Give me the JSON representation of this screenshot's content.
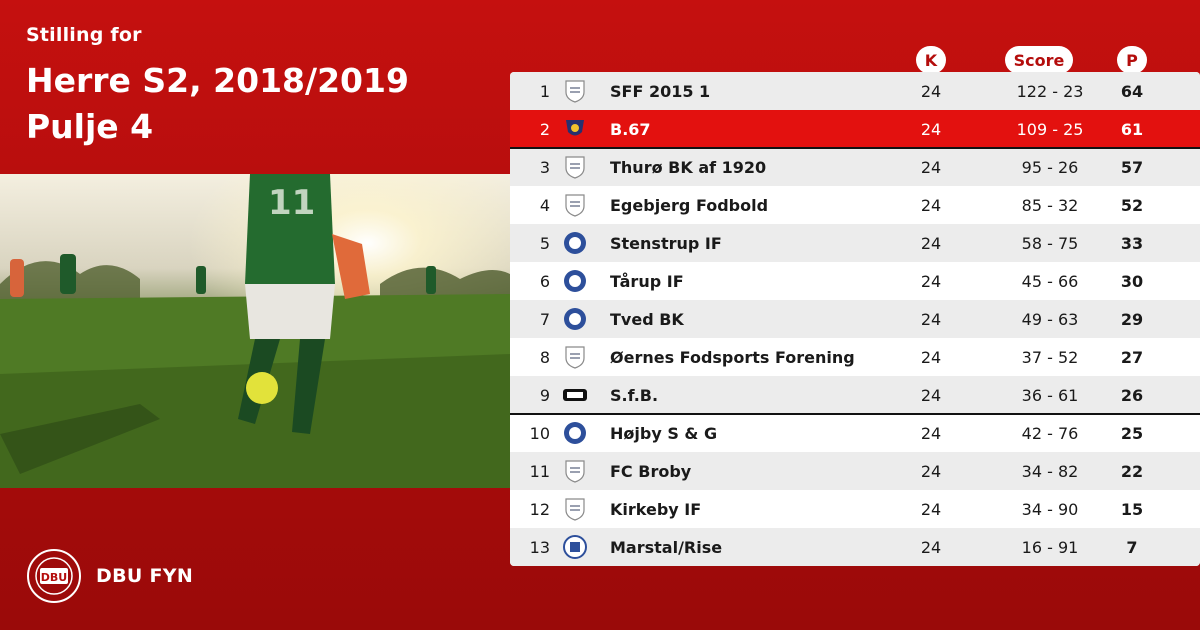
{
  "header": {
    "subtitle": "Stilling for",
    "title_line1": "Herre S2, 2018/2019",
    "title_line2": "Pulje 4"
  },
  "brand": {
    "name": "DBU FYN",
    "logo_text": "DBU"
  },
  "columns": {
    "k": "K",
    "score": "Score",
    "p": "P"
  },
  "colors": {
    "primary": "#c5100f",
    "highlight_row": "#e3110f",
    "row_alt": "#ececec"
  },
  "rows": [
    {
      "pos": "1",
      "club": "SFF 2015 1",
      "k": "24",
      "score": "122 - 23",
      "p": "64",
      "crest": "fc-faaborg-icon"
    },
    {
      "pos": "2",
      "club": "B.67",
      "k": "24",
      "score": "109 - 25",
      "p": "61",
      "crest": "b67-crest-icon"
    },
    {
      "pos": "3",
      "club": "Thurø BK af 1920",
      "k": "24",
      "score": "95 - 26",
      "p": "57",
      "crest": "thuro-crest-icon"
    },
    {
      "pos": "4",
      "club": "Egebjerg Fodbold",
      "k": "24",
      "score": "85 - 32",
      "p": "52",
      "crest": "shield-placeholder-icon"
    },
    {
      "pos": "5",
      "club": "Stenstrup IF",
      "k": "24",
      "score": "58 - 75",
      "p": "33",
      "crest": "stenstrup-crest-icon"
    },
    {
      "pos": "6",
      "club": "Tårup IF",
      "k": "24",
      "score": "45 - 66",
      "p": "30",
      "crest": "tarup-crest-icon"
    },
    {
      "pos": "7",
      "club": "Tved BK",
      "k": "24",
      "score": "49 - 63",
      "p": "29",
      "crest": "tved-crest-icon"
    },
    {
      "pos": "8",
      "club": "Øernes Fodsports Forening",
      "k": "24",
      "score": "37 - 52",
      "p": "27",
      "crest": "shield-placeholder-icon"
    },
    {
      "pos": "9",
      "club": "S.f.B.",
      "k": "24",
      "score": "36 - 61",
      "p": "26",
      "crest": "sfb-crest-icon"
    },
    {
      "pos": "10",
      "club": "Højby S & G",
      "k": "24",
      "score": "42 - 76",
      "p": "25",
      "crest": "hojby-crest-icon"
    },
    {
      "pos": "11",
      "club": "FC Broby",
      "k": "24",
      "score": "34 - 82",
      "p": "22",
      "crest": "broby-crest-icon"
    },
    {
      "pos": "12",
      "club": "Kirkeby IF",
      "k": "24",
      "score": "34 - 90",
      "p": "15",
      "crest": "shield-placeholder-icon"
    },
    {
      "pos": "13",
      "club": "Marstal/Rise",
      "k": "24",
      "score": "16 - 91",
      "p": "7",
      "crest": "marstal-crest-icon"
    }
  ]
}
